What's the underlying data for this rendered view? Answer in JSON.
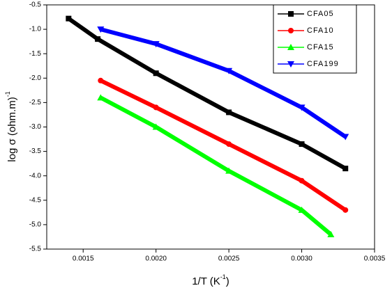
{
  "chart_data": {
    "type": "line",
    "x_label": [
      "1/T (K",
      "-1",
      ")"
    ],
    "y_label": [
      "log σ  (ohm.m)",
      "-1"
    ],
    "xlim": [
      0.00125,
      0.0035
    ],
    "ylim": [
      -5.5,
      -0.5
    ],
    "xticks": [
      0.0015,
      {
        "value": 0.002,
        "label": "0.0020"
      },
      0.0025,
      {
        "value": 0.003,
        "label": "0.0030"
      },
      0.0035
    ],
    "yticks": [
      -0.5,
      {
        "value": -1,
        "label": "-1.0"
      },
      -1.5,
      {
        "value": -2,
        "label": "-2.0"
      },
      -2.5,
      {
        "value": -3,
        "label": "-3.0"
      },
      -3.5,
      {
        "value": -4,
        "label": "-4.0"
      },
      -4.5,
      {
        "value": -5,
        "label": "-5.0"
      },
      -5.5
    ],
    "legend": "upper right",
    "series": [
      {
        "name": "CFA05",
        "color": "#000000",
        "marker": "square",
        "x": [
          0.0014,
          0.0016,
          0.002,
          0.0025,
          0.003,
          0.0033
        ],
        "values": [
          -0.78,
          -1.2,
          -1.9,
          -2.7,
          -3.35,
          -3.85
        ]
      },
      {
        "name": "CFA10",
        "color": "#ff0000",
        "marker": "circle",
        "x": [
          0.00162,
          0.002,
          0.0025,
          0.003,
          0.0033
        ],
        "values": [
          -2.05,
          -2.6,
          -3.35,
          -4.1,
          -4.7
        ]
      },
      {
        "name": "CFA15",
        "color": "#00ff00",
        "marker": "triangle-up",
        "x": [
          0.00162,
          0.002,
          0.0025,
          0.003,
          0.0032
        ],
        "values": [
          -2.4,
          -3.0,
          -3.9,
          -4.7,
          -5.2
        ]
      },
      {
        "name": "CFA199",
        "color": "#0000ff",
        "marker": "triangle-down",
        "x": [
          0.00162,
          0.002,
          0.0025,
          0.003,
          0.0033
        ],
        "values": [
          -1.0,
          -1.3,
          -1.85,
          -2.6,
          -3.2
        ]
      }
    ]
  }
}
